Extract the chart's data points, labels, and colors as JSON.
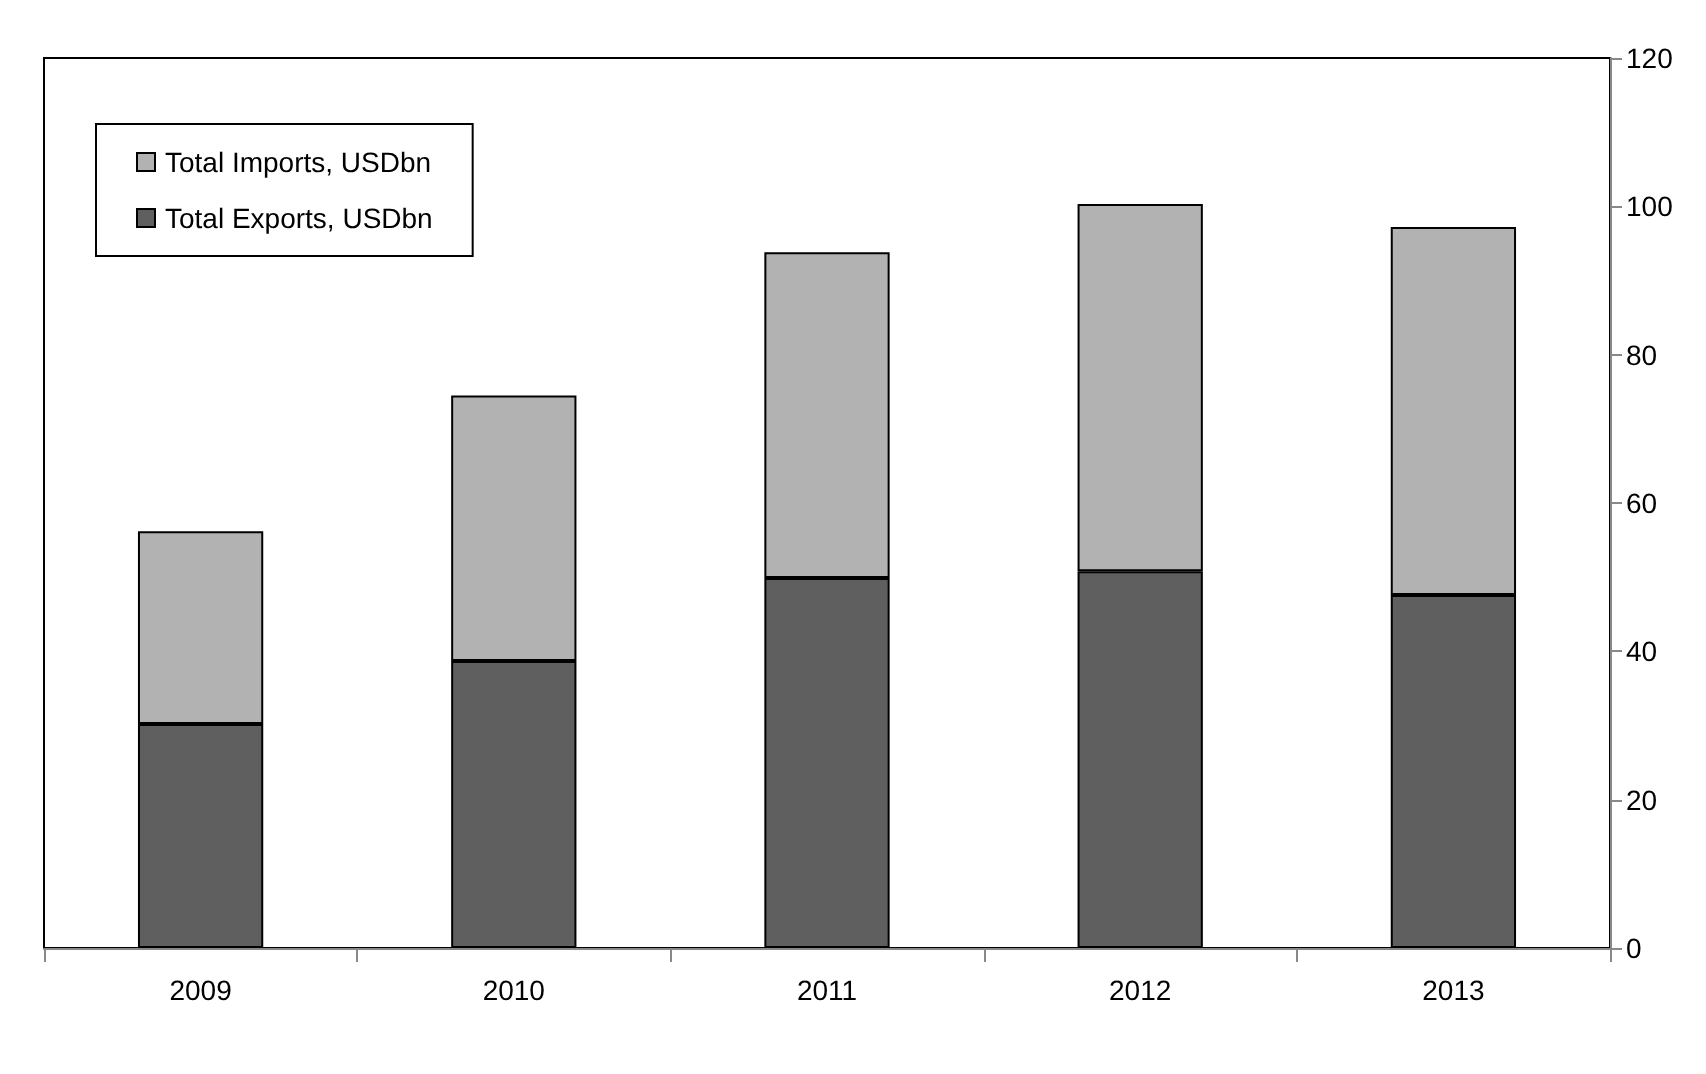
{
  "chart_data": {
    "type": "bar",
    "stacked": true,
    "categories": [
      "2009",
      "2010",
      "2011",
      "2012",
      "2013"
    ],
    "series": [
      {
        "name": "Total Exports, USDbn",
        "color": "#5f5f5f",
        "values": [
          30.2,
          38.7,
          49.9,
          50.8,
          47.6
        ]
      },
      {
        "name": "Total Imports, USDbn",
        "color": "#b2b2b2",
        "values": [
          26,
          35.8,
          43.9,
          49.5,
          49.6
        ]
      }
    ],
    "ylim": [
      0,
      120
    ],
    "yticks": [
      0,
      20,
      40,
      60,
      80,
      100,
      120
    ],
    "grid": false,
    "legend": "top left"
  }
}
